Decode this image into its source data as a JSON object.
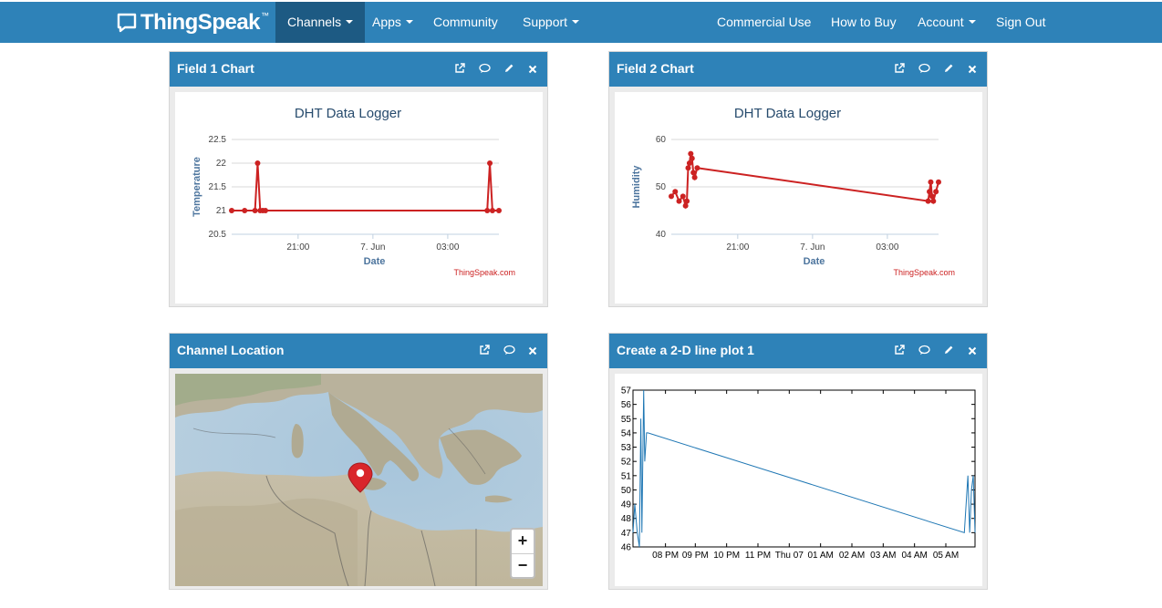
{
  "nav": {
    "logo": "ThingSpeak",
    "logo_tm": "™",
    "items": [
      {
        "label": "Channels",
        "caret": true,
        "active": true
      },
      {
        "label": "Apps",
        "caret": true
      },
      {
        "label": "Community",
        "caret": false
      },
      {
        "label": "Support",
        "caret": true
      }
    ],
    "right_items": [
      {
        "label": "Commercial Use",
        "caret": false
      },
      {
        "label": "How to Buy",
        "caret": false
      },
      {
        "label": "Account",
        "caret": true
      },
      {
        "label": "Sign Out",
        "caret": false
      }
    ]
  },
  "panels": {
    "field1": {
      "title": "Field 1 Chart",
      "tools": [
        "external-link-icon",
        "comment-icon",
        "pencil-icon",
        "close-icon"
      ]
    },
    "field2": {
      "title": "Field 2 Chart",
      "tools": [
        "external-link-icon",
        "comment-icon",
        "pencil-icon",
        "close-icon"
      ]
    },
    "location": {
      "title": "Channel Location",
      "tools": [
        "external-link-icon",
        "comment-icon",
        "close-icon"
      ]
    },
    "plot": {
      "title": "Create a 2-D line plot 1",
      "tools": [
        "external-link-icon",
        "comment-icon",
        "pencil-icon",
        "close-icon"
      ]
    }
  },
  "map": {
    "zoom_in": "+",
    "zoom_out": "−",
    "marker_color": "#d9262b"
  },
  "chart_data": [
    {
      "type": "line",
      "title": "DHT Data Logger",
      "xlabel": "Date",
      "ylabel": "Temperature",
      "credit": "ThingSpeak.com",
      "color": "#cc2222",
      "x_ticks": [
        "21:00",
        "7. Jun",
        "03:00"
      ],
      "y_ticks": [
        "22.5",
        "22",
        "21.5",
        "21",
        "20.5"
      ],
      "ylim": [
        20.5,
        22.5
      ],
      "x_hours": [
        0,
        0.5,
        0.9,
        1.0,
        1.1,
        1.2,
        1.3,
        9.85,
        9.95,
        10.05,
        10.3
      ],
      "y": [
        21,
        21,
        21,
        22,
        21,
        21,
        21,
        21,
        22,
        21,
        21
      ]
    },
    {
      "type": "line",
      "title": "DHT Data Logger",
      "xlabel": "Date",
      "ylabel": "Humidity",
      "credit": "ThingSpeak.com",
      "color": "#cc2222",
      "x_ticks": [
        "21:00",
        "7. Jun",
        "03:00"
      ],
      "y_ticks": [
        "60",
        "50",
        "40"
      ],
      "ylim": [
        40,
        60
      ],
      "x_hours": [
        0,
        0.15,
        0.3,
        0.45,
        0.55,
        0.6,
        0.65,
        0.7,
        0.75,
        0.8,
        0.85,
        0.9,
        1.0,
        9.9,
        9.95,
        10.0,
        10.05,
        10.1,
        10.2,
        10.3
      ],
      "y": [
        48,
        49,
        47,
        48,
        46,
        47,
        54,
        55,
        57,
        56,
        53,
        52,
        54,
        47,
        49,
        51,
        48,
        47,
        49,
        51
      ]
    },
    {
      "type": "line",
      "title": "",
      "xlabel": "",
      "ylabel": "",
      "color": "#1f77b4",
      "x_ticks": [
        "08 PM",
        "09 PM",
        "10 PM",
        "11 PM",
        "Thu 07",
        "01 AM",
        "02 AM",
        "03 AM",
        "04 AM",
        "05 AM"
      ],
      "y_ticks": [
        "57",
        "56",
        "55",
        "54",
        "53",
        "52",
        "51",
        "50",
        "49",
        "48",
        "47",
        "46"
      ],
      "ylim": [
        46,
        57
      ],
      "x_hours": [
        0,
        0.05,
        0.12,
        0.18,
        0.22,
        0.25,
        0.3,
        0.33,
        0.38,
        0.42,
        9.3,
        9.35,
        9.4,
        9.45,
        9.5,
        9.55,
        9.6
      ],
      "y": [
        47,
        49,
        47,
        46,
        55,
        47,
        57,
        52,
        54,
        54,
        47,
        49,
        51,
        47,
        50,
        51,
        47
      ]
    }
  ]
}
